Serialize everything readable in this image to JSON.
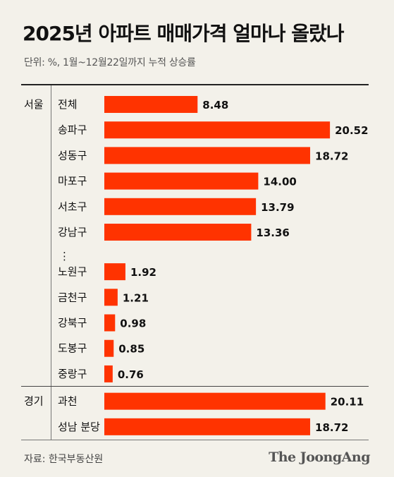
{
  "title": "2025년 아파트 매매가격 얼마나 올랐나",
  "subtitle": "단위: %, 1월~12월22일까지 누적 상승률",
  "source": "자료: 한국부동산원",
  "brand": "The JoongAng",
  "colors": {
    "bar": "#ff3300",
    "background": "#f3f1ea"
  },
  "chart_data": {
    "type": "bar",
    "orientation": "horizontal",
    "title": "2025년 아파트 매매가격 얼마나 올랐나",
    "subtitle": "단위: %, 1월~12월22일까지 누적 상승률",
    "xlim": [
      0,
      21
    ],
    "grid": false,
    "ellipsis_after": "강남구",
    "ellipsis_text": "⋮",
    "groups": [
      {
        "name": "서울",
        "categories": [
          "전체",
          "송파구",
          "성동구",
          "마포구",
          "서초구",
          "강남구",
          "노원구",
          "금천구",
          "강북구",
          "도봉구",
          "중랑구"
        ],
        "values": [
          8.48,
          20.52,
          18.72,
          14.0,
          13.79,
          13.36,
          1.92,
          1.21,
          0.98,
          0.85,
          0.76
        ],
        "labels": [
          "8.48",
          "20.52",
          "18.72",
          "14.00",
          "13.79",
          "13.36",
          "1.92",
          "1.21",
          "0.98",
          "0.85",
          "0.76"
        ]
      },
      {
        "name": "경기",
        "categories": [
          "과천",
          "성남 분당"
        ],
        "values": [
          20.11,
          18.72
        ],
        "labels": [
          "20.11",
          "18.72"
        ]
      }
    ]
  }
}
